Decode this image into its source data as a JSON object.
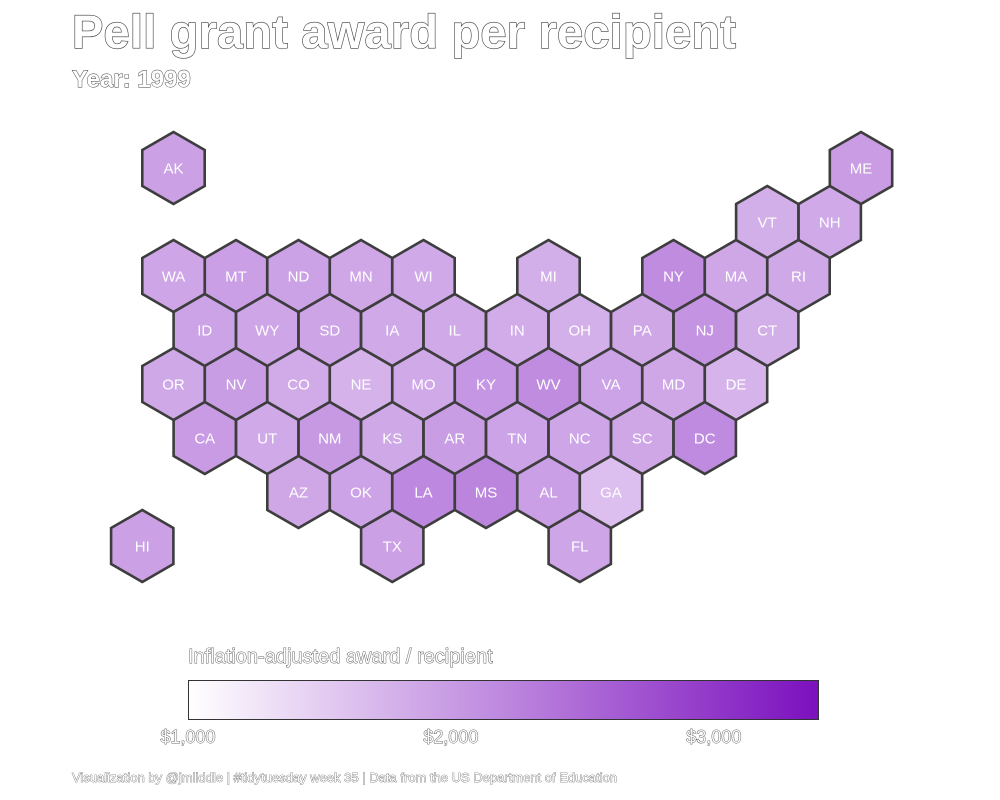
{
  "title": "Pell grant award per recipient",
  "subtitle": "Year: 1999",
  "caption": "Visualization by @jmliddle | #tidytuesday week 35 | Data from the US Department of Education",
  "chart_data": {
    "type": "heatmap",
    "subtype": "hex tile map",
    "title": "Pell grant award per recipient",
    "subtitle": "Year: 1999",
    "legend": {
      "title": "Inflation-adjusted award / recipient",
      "min": 1000,
      "max": 3400,
      "ticks": [
        {
          "value": 1000,
          "label": "$1,000"
        },
        {
          "value": 2000,
          "label": "$2,000"
        },
        {
          "value": 3000,
          "label": "$3,000"
        }
      ],
      "low_color": "#ffffff",
      "high_color": "#7b10be",
      "placement": "bottom"
    },
    "states": [
      {
        "code": "AK",
        "row": 0,
        "col": 1,
        "value": 1950
      },
      {
        "code": "ME",
        "row": 0,
        "col": 12,
        "value": 1990
      },
      {
        "code": "VT",
        "row": 1,
        "col": 10,
        "value": 1800
      },
      {
        "code": "NH",
        "row": 1,
        "col": 11,
        "value": 1850
      },
      {
        "code": "WA",
        "row": 2,
        "col": 1,
        "value": 1900
      },
      {
        "code": "MT",
        "row": 2,
        "col": 2,
        "value": 1960
      },
      {
        "code": "ND",
        "row": 2,
        "col": 3,
        "value": 1930
      },
      {
        "code": "MN",
        "row": 2,
        "col": 4,
        "value": 1880
      },
      {
        "code": "WI",
        "row": 2,
        "col": 5,
        "value": 1850
      },
      {
        "code": "MI",
        "row": 2,
        "col": 7,
        "value": 1800
      },
      {
        "code": "NY",
        "row": 2,
        "col": 9,
        "value": 2150
      },
      {
        "code": "MA",
        "row": 2,
        "col": 10,
        "value": 1880
      },
      {
        "code": "RI",
        "row": 2,
        "col": 11,
        "value": 1870
      },
      {
        "code": "ID",
        "row": 3,
        "col": 1,
        "value": 1920
      },
      {
        "code": "WY",
        "row": 3,
        "col": 2,
        "value": 1900
      },
      {
        "code": "SD",
        "row": 3,
        "col": 3,
        "value": 1910
      },
      {
        "code": "IA",
        "row": 3,
        "col": 4,
        "value": 1860
      },
      {
        "code": "IL",
        "row": 3,
        "col": 5,
        "value": 1850
      },
      {
        "code": "IN",
        "row": 3,
        "col": 6,
        "value": 1830
      },
      {
        "code": "OH",
        "row": 3,
        "col": 7,
        "value": 1790
      },
      {
        "code": "PA",
        "row": 3,
        "col": 8,
        "value": 1880
      },
      {
        "code": "NJ",
        "row": 3,
        "col": 9,
        "value": 2080
      },
      {
        "code": "CT",
        "row": 3,
        "col": 10,
        "value": 1800
      },
      {
        "code": "OR",
        "row": 4,
        "col": 1,
        "value": 1870
      },
      {
        "code": "NV",
        "row": 4,
        "col": 2,
        "value": 1980
      },
      {
        "code": "CO",
        "row": 4,
        "col": 3,
        "value": 1840
      },
      {
        "code": "NE",
        "row": 4,
        "col": 4,
        "value": 1760
      },
      {
        "code": "MO",
        "row": 4,
        "col": 5,
        "value": 1860
      },
      {
        "code": "KY",
        "row": 4,
        "col": 6,
        "value": 2050
      },
      {
        "code": "WV",
        "row": 4,
        "col": 7,
        "value": 2150
      },
      {
        "code": "VA",
        "row": 4,
        "col": 8,
        "value": 1920
      },
      {
        "code": "MD",
        "row": 4,
        "col": 9,
        "value": 1880
      },
      {
        "code": "DE",
        "row": 4,
        "col": 10,
        "value": 1750
      },
      {
        "code": "CA",
        "row": 5,
        "col": 1,
        "value": 2000
      },
      {
        "code": "UT",
        "row": 5,
        "col": 2,
        "value": 1850
      },
      {
        "code": "NM",
        "row": 5,
        "col": 3,
        "value": 2020
      },
      {
        "code": "KS",
        "row": 5,
        "col": 4,
        "value": 1870
      },
      {
        "code": "AR",
        "row": 5,
        "col": 5,
        "value": 1980
      },
      {
        "code": "TN",
        "row": 5,
        "col": 6,
        "value": 1920
      },
      {
        "code": "NC",
        "row": 5,
        "col": 7,
        "value": 1890
      },
      {
        "code": "SC",
        "row": 5,
        "col": 8,
        "value": 1880
      },
      {
        "code": "DC",
        "row": 5,
        "col": 9,
        "value": 2160
      },
      {
        "code": "AZ",
        "row": 6,
        "col": 3,
        "value": 1880
      },
      {
        "code": "OK",
        "row": 6,
        "col": 4,
        "value": 1920
      },
      {
        "code": "LA",
        "row": 6,
        "col": 5,
        "value": 2200
      },
      {
        "code": "MS",
        "row": 6,
        "col": 6,
        "value": 2230
      },
      {
        "code": "AL",
        "row": 6,
        "col": 7,
        "value": 1960
      },
      {
        "code": "GA",
        "row": 6,
        "col": 8,
        "value": 1640
      },
      {
        "code": "HI",
        "row": 7,
        "col": 0,
        "value": 1950
      },
      {
        "code": "TX",
        "row": 7,
        "col": 4,
        "value": 1950
      },
      {
        "code": "FL",
        "row": 7,
        "col": 7,
        "value": 1900
      }
    ]
  }
}
